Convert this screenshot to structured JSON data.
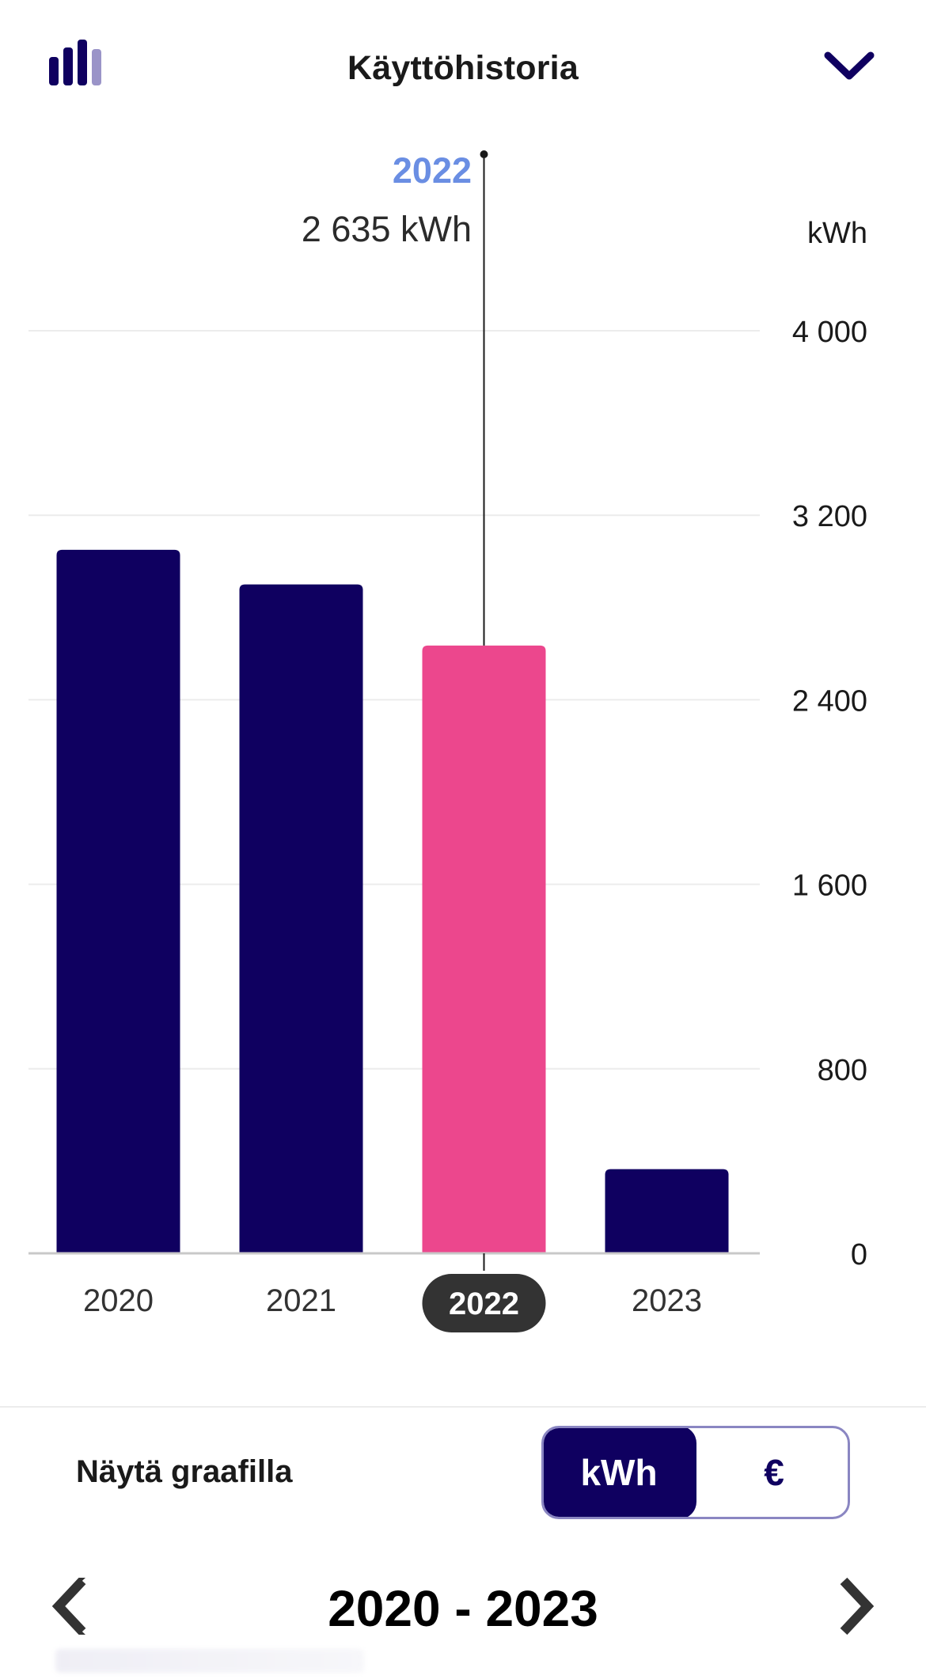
{
  "header": {
    "title": "Käyttöhistoria",
    "icon": "bar-chart-icon",
    "collapse_icon": "chevron-down-icon"
  },
  "tooltip": {
    "year": "2022",
    "value": "2 635 kWh"
  },
  "chart_data": {
    "type": "bar",
    "categories": [
      "2020",
      "2021",
      "2022",
      "2023"
    ],
    "values": [
      3050,
      2900,
      2635,
      365
    ],
    "selected_index": 2,
    "y_unit": "kWh",
    "ylim": [
      0,
      4000
    ],
    "y_ticks": [
      0,
      800,
      1600,
      2400,
      3200,
      4000
    ],
    "y_tick_labels": [
      "0",
      "800",
      "1 600",
      "2 400",
      "3 200",
      "4 000"
    ],
    "grid": true,
    "bar_color": "#0f0060",
    "selected_color": "#ec478d"
  },
  "display": {
    "label": "Näytä graafilla",
    "options": [
      "kWh",
      "€"
    ],
    "selected": "kWh"
  },
  "period": {
    "label": "2020 - 2023",
    "prev_icon": "chevron-left-icon",
    "next_icon": "chevron-right-icon"
  }
}
